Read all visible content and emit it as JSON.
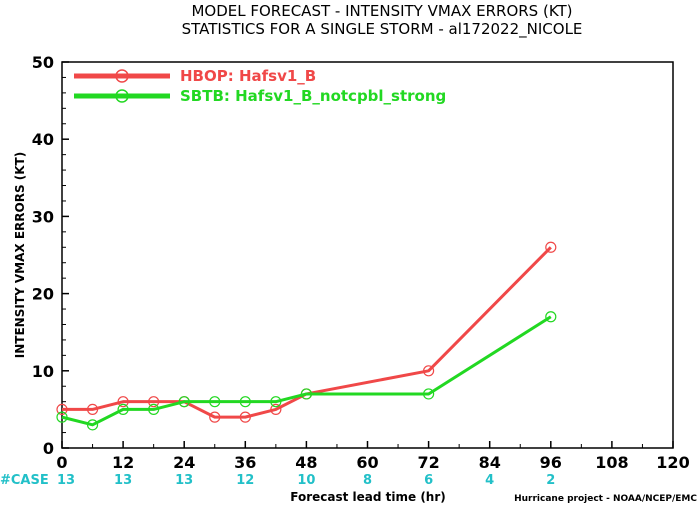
{
  "chart_data": {
    "type": "line",
    "title": "MODEL FORECAST - INTENSITY VMAX ERRORS (KT)",
    "subtitle": "STATISTICS FOR A SINGLE STORM - al172022_NICOLE",
    "xlabel": "Forecast lead time (hr)",
    "ylabel": "INTENSITY VMAX ERRORS (KT)",
    "xlim": [
      0,
      120
    ],
    "ylim": [
      0,
      50
    ],
    "xticks": [
      0,
      12,
      24,
      36,
      48,
      60,
      72,
      84,
      96,
      108,
      120
    ],
    "yticks": [
      0,
      10,
      20,
      30,
      40,
      50
    ],
    "xtick_labels": [
      "0",
      "12",
      "24",
      "36",
      "48",
      "60",
      "72",
      "84",
      "96",
      "108",
      "120"
    ],
    "ytick_labels": [
      "0",
      "10",
      "20",
      "30",
      "40",
      "50"
    ],
    "grid": false,
    "legend_position": "top-left",
    "series": [
      {
        "name": "HBOP: Hafsv1_B",
        "color": "#f04848",
        "x": [
          0,
          6,
          12,
          18,
          24,
          30,
          36,
          42,
          48,
          72,
          96
        ],
        "y": [
          5,
          5,
          6,
          6,
          6,
          4,
          4,
          5,
          7,
          10,
          26
        ]
      },
      {
        "name": "SBTB: Hafsv1_B_notcpbl_strong",
        "color": "#22d822",
        "x": [
          0,
          6,
          12,
          18,
          24,
          30,
          36,
          42,
          48,
          72,
          96
        ],
        "y": [
          4,
          3,
          5,
          5,
          6,
          6,
          6,
          6,
          7,
          7,
          17
        ]
      }
    ],
    "case_counts": {
      "label": "#CASE",
      "x": [
        0,
        12,
        24,
        36,
        48,
        60,
        72,
        84,
        96
      ],
      "counts": [
        "13",
        "13",
        "13",
        "12",
        "10",
        "8",
        "6",
        "4",
        "2"
      ]
    },
    "credit": "Hurricane project - NOAA/NCEP/EMC"
  }
}
